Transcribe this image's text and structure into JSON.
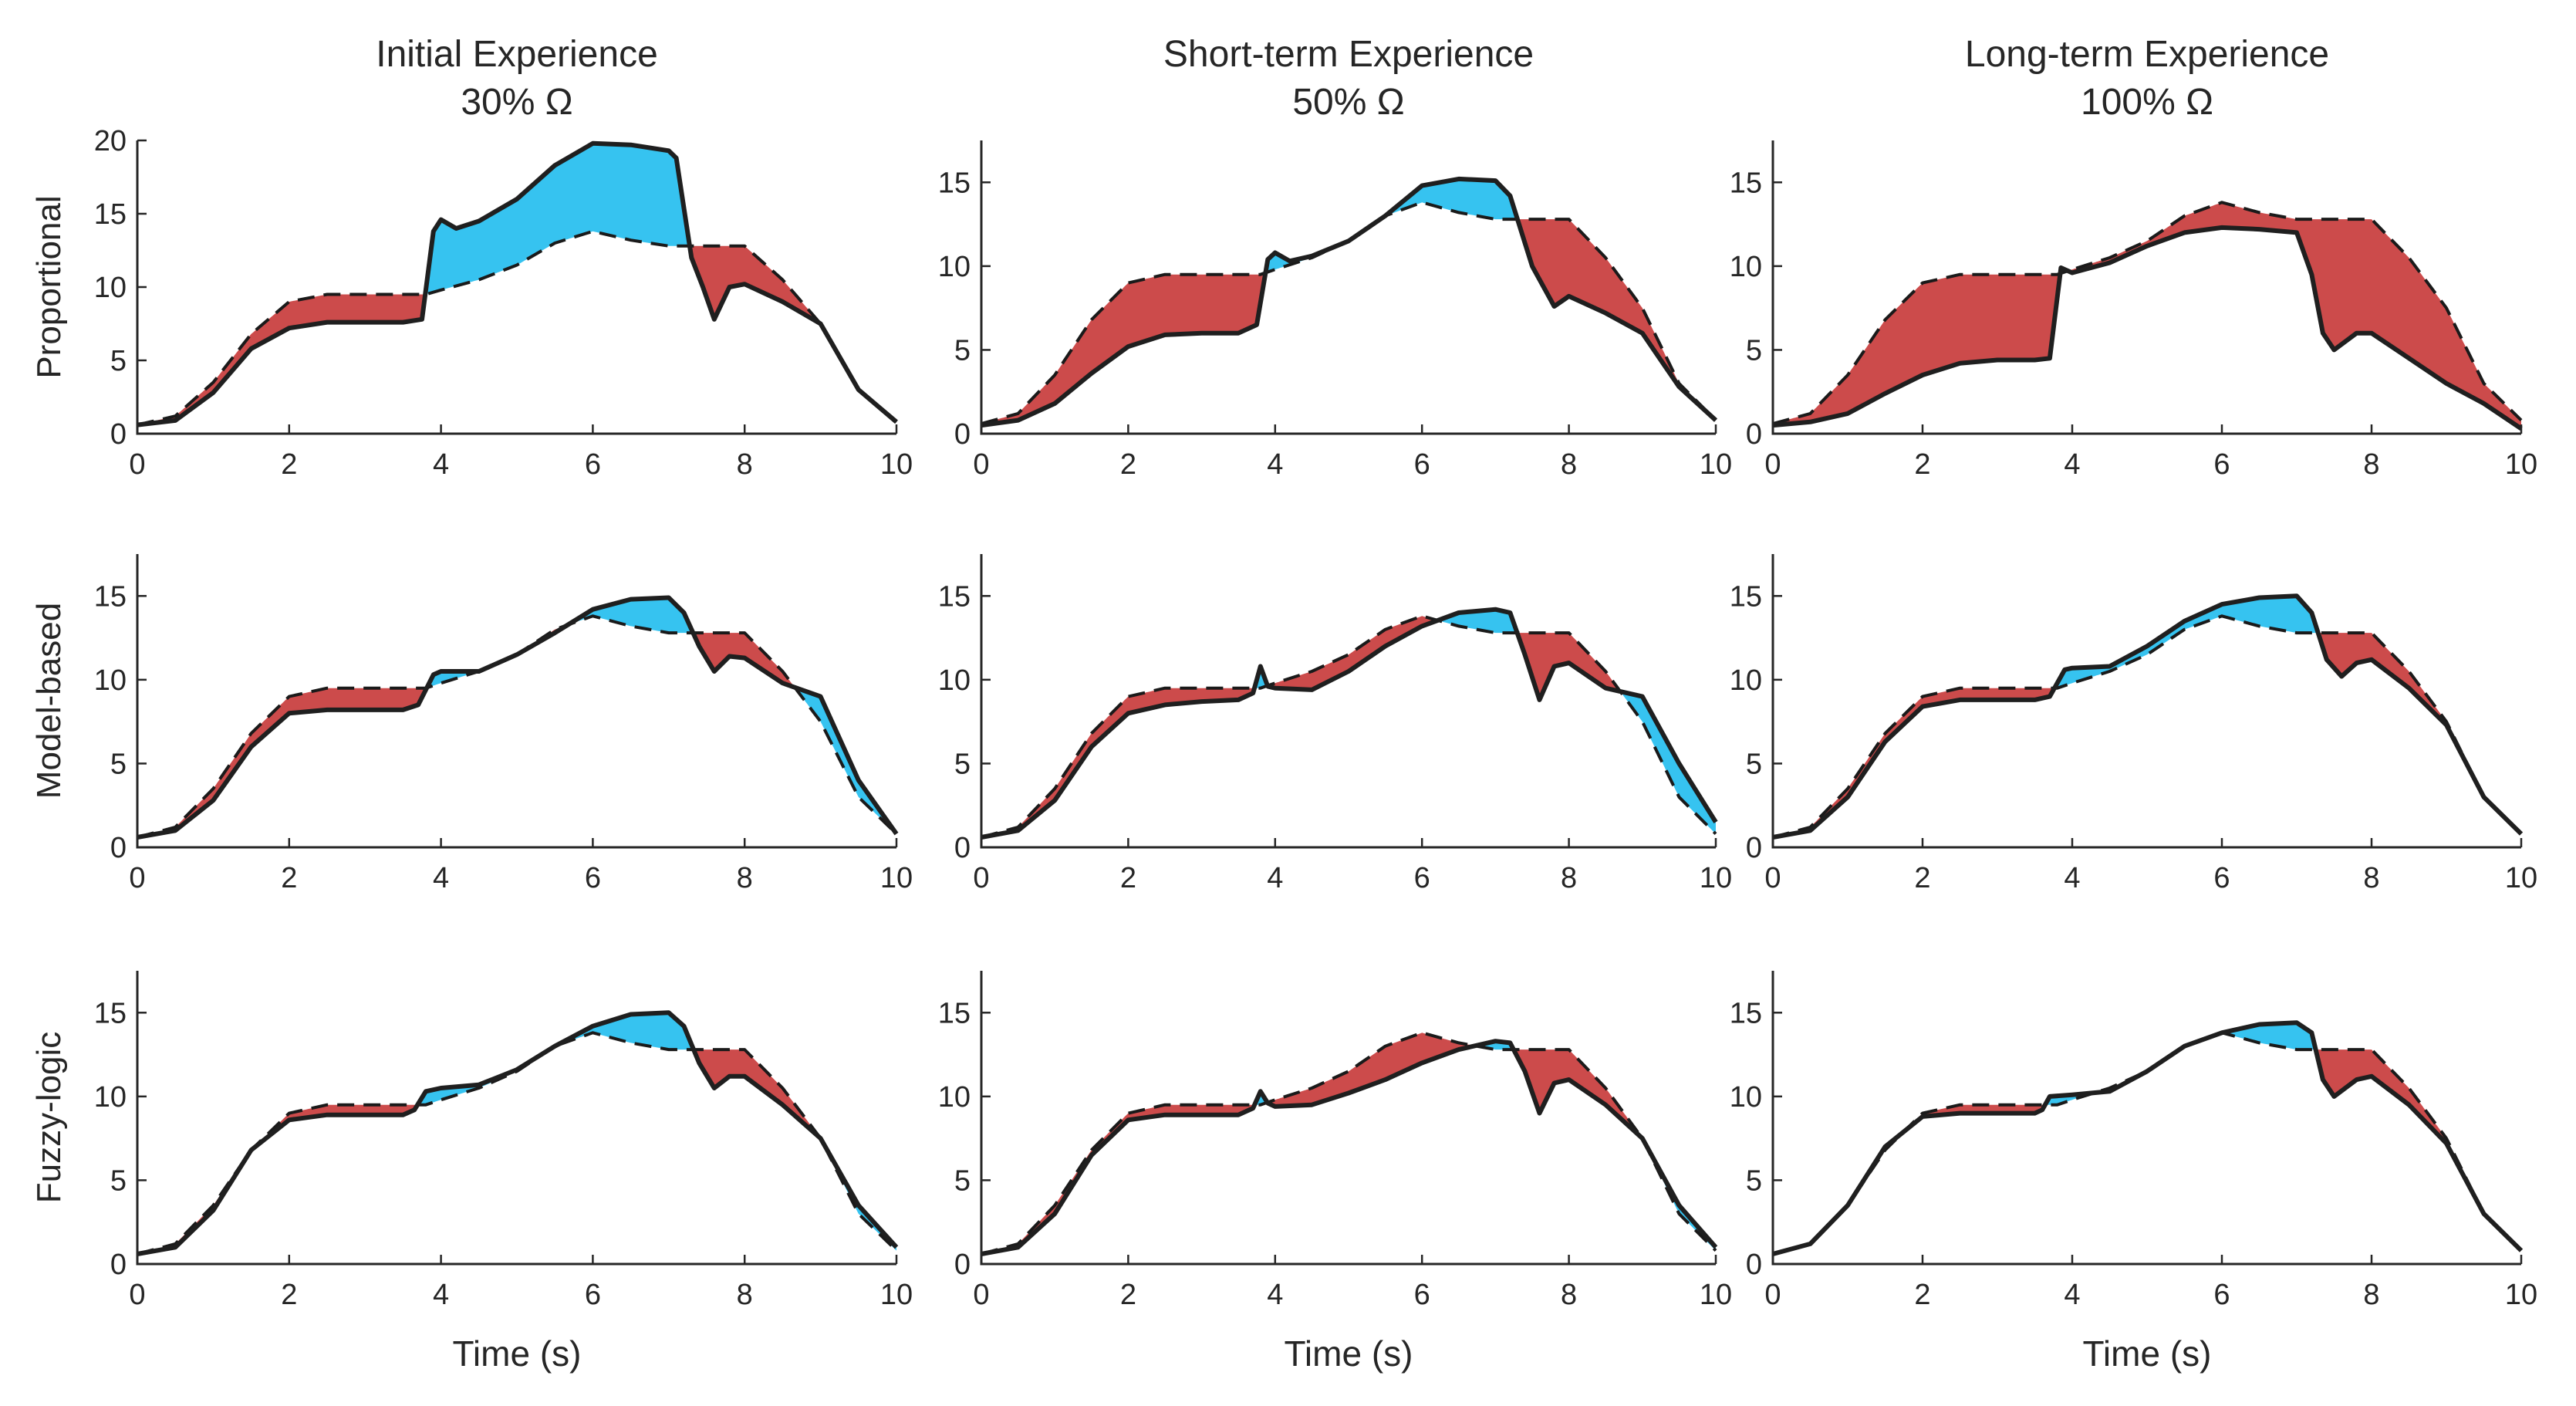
{
  "chart_data": {
    "type": "area",
    "layout": "3x3 grid of line/area subplots",
    "column_titles": [
      {
        "line1": "Initial Experience",
        "line2": "30% Ω"
      },
      {
        "line1": "Short-term Experience",
        "line2": "50% Ω"
      },
      {
        "line1": "Long-term Experience",
        "line2": "100% Ω"
      }
    ],
    "row_labels": [
      "Proportional",
      "Model-based",
      "Fuzzy-logic"
    ],
    "xlabel": "Time (s)",
    "xlim": [
      0,
      10
    ],
    "xticks": [
      0,
      2,
      4,
      6,
      8,
      10
    ],
    "fill_colors": {
      "actual_above_reference": "#36c3f0",
      "actual_below_reference": "#cc4b4b"
    },
    "series_names": [
      "reference (dashed)",
      "actual (solid)"
    ],
    "reference": {
      "x": [
        0,
        0.5,
        1,
        1.5,
        2,
        2.5,
        3,
        3.5,
        3.8,
        4,
        4.5,
        5,
        5.5,
        6,
        6.5,
        7,
        7.5,
        8,
        8.5,
        9,
        9.5,
        10
      ],
      "y": [
        0.6,
        1.2,
        3.5,
        6.8,
        9.0,
        9.5,
        9.5,
        9.5,
        9.5,
        9.8,
        10.5,
        11.5,
        13.0,
        13.8,
        13.2,
        12.8,
        12.8,
        12.8,
        10.5,
        7.5,
        3.0,
        0.8
      ]
    },
    "subplots": [
      {
        "row": 0,
        "col": 0,
        "ylim": [
          0,
          20
        ],
        "yticks": [
          0,
          5,
          10,
          15,
          20
        ],
        "actual": {
          "x": [
            0,
            0.5,
            1,
            1.5,
            2,
            2.5,
            3,
            3.5,
            3.75,
            3.9,
            4,
            4.2,
            4.5,
            5,
            5.5,
            6,
            6.5,
            7,
            7.1,
            7.3,
            7.45,
            7.6,
            7.8,
            8,
            8.5,
            9,
            9.5,
            10
          ],
          "y": [
            0.6,
            0.9,
            2.8,
            5.8,
            7.2,
            7.6,
            7.6,
            7.6,
            7.8,
            13.8,
            14.6,
            14.0,
            14.5,
            16.0,
            18.3,
            19.8,
            19.7,
            19.3,
            18.8,
            12.0,
            10.0,
            7.8,
            10.0,
            10.2,
            9.0,
            7.5,
            3.0,
            0.8
          ]
        }
      },
      {
        "row": 0,
        "col": 1,
        "ylim": [
          0,
          17.5
        ],
        "yticks": [
          0,
          5,
          10,
          15
        ],
        "actual": {
          "x": [
            0,
            0.5,
            1,
            1.5,
            2,
            2.5,
            3,
            3.5,
            3.75,
            3.9,
            4,
            4.2,
            4.5,
            5,
            5.5,
            6,
            6.5,
            7,
            7.2,
            7.5,
            7.8,
            8,
            8.5,
            9,
            9.5,
            10
          ],
          "y": [
            0.5,
            0.8,
            1.8,
            3.6,
            5.2,
            5.9,
            6.0,
            6.0,
            6.5,
            10.4,
            10.8,
            10.3,
            10.6,
            11.5,
            13.0,
            14.8,
            15.2,
            15.1,
            14.2,
            10.0,
            7.6,
            8.2,
            7.2,
            6.0,
            2.8,
            0.8
          ]
        }
      },
      {
        "row": 0,
        "col": 2,
        "ylim": [
          0,
          17.5
        ],
        "yticks": [
          0,
          5,
          10,
          15
        ],
        "actual": {
          "x": [
            0,
            0.5,
            1,
            1.5,
            2,
            2.5,
            3,
            3.5,
            3.7,
            3.85,
            4,
            4.5,
            5,
            5.5,
            6,
            6.5,
            7,
            7.2,
            7.35,
            7.5,
            7.8,
            8,
            8.5,
            9,
            9.5,
            10
          ],
          "y": [
            0.5,
            0.7,
            1.2,
            2.4,
            3.5,
            4.2,
            4.4,
            4.4,
            4.5,
            9.9,
            9.6,
            10.2,
            11.2,
            12.0,
            12.3,
            12.2,
            12.0,
            9.5,
            6.0,
            5.0,
            6.0,
            6.0,
            4.5,
            3.0,
            1.8,
            0.3
          ]
        }
      },
      {
        "row": 1,
        "col": 0,
        "ylim": [
          0,
          17.5
        ],
        "yticks": [
          0,
          5,
          10,
          15
        ],
        "actual": {
          "x": [
            0,
            0.5,
            1,
            1.5,
            2,
            2.5,
            3,
            3.5,
            3.7,
            3.9,
            4,
            4.5,
            5,
            5.5,
            6,
            6.5,
            7,
            7.2,
            7.4,
            7.6,
            7.8,
            8,
            8.5,
            9,
            9.5,
            10
          ],
          "y": [
            0.6,
            1.0,
            2.8,
            6.0,
            8.0,
            8.2,
            8.2,
            8.2,
            8.5,
            10.3,
            10.5,
            10.5,
            11.5,
            12.8,
            14.2,
            14.8,
            14.9,
            14.0,
            12.0,
            10.5,
            11.4,
            11.3,
            9.8,
            9.0,
            4.0,
            0.8
          ]
        }
      },
      {
        "row": 1,
        "col": 1,
        "ylim": [
          0,
          17.5
        ],
        "yticks": [
          0,
          5,
          10,
          15
        ],
        "actual": {
          "x": [
            0,
            0.5,
            1,
            1.5,
            2,
            2.5,
            3,
            3.5,
            3.7,
            3.8,
            3.9,
            4,
            4.5,
            5,
            5.5,
            6,
            6.5,
            7,
            7.2,
            7.4,
            7.6,
            7.8,
            8,
            8.5,
            9,
            9.5,
            10
          ],
          "y": [
            0.6,
            1.0,
            2.8,
            6.0,
            8.0,
            8.5,
            8.7,
            8.8,
            9.2,
            10.8,
            9.6,
            9.5,
            9.4,
            10.5,
            12.0,
            13.2,
            14.0,
            14.2,
            14.0,
            11.5,
            8.8,
            10.8,
            11.0,
            9.5,
            9.0,
            5.0,
            1.5
          ]
        }
      },
      {
        "row": 1,
        "col": 2,
        "ylim": [
          0,
          17.5
        ],
        "yticks": [
          0,
          5,
          10,
          15
        ],
        "actual": {
          "x": [
            0,
            0.5,
            1,
            1.5,
            2,
            2.5,
            3,
            3.5,
            3.7,
            3.9,
            4,
            4.5,
            5,
            5.5,
            6,
            6.5,
            7,
            7.2,
            7.4,
            7.6,
            7.8,
            8,
            8.5,
            9,
            9.5,
            10
          ],
          "y": [
            0.6,
            1.0,
            3.0,
            6.3,
            8.4,
            8.8,
            8.8,
            8.8,
            9.0,
            10.6,
            10.7,
            10.8,
            12.0,
            13.5,
            14.5,
            14.9,
            15.0,
            14.0,
            11.2,
            10.2,
            11.0,
            11.2,
            9.5,
            7.3,
            3.0,
            0.8
          ]
        }
      },
      {
        "row": 2,
        "col": 0,
        "ylim": [
          0,
          17.5
        ],
        "yticks": [
          0,
          5,
          10,
          15
        ],
        "actual": {
          "x": [
            0,
            0.5,
            1,
            1.5,
            2,
            2.5,
            3,
            3.5,
            3.65,
            3.8,
            4,
            4.5,
            5,
            5.5,
            6,
            6.5,
            7,
            7.2,
            7.4,
            7.6,
            7.8,
            8,
            8.5,
            9,
            9.5,
            10
          ],
          "y": [
            0.6,
            1.0,
            3.2,
            6.8,
            8.6,
            8.9,
            8.9,
            8.9,
            9.2,
            10.3,
            10.5,
            10.7,
            11.6,
            13.0,
            14.2,
            14.9,
            15.0,
            14.2,
            12.0,
            10.5,
            11.2,
            11.2,
            9.5,
            7.5,
            3.5,
            1.0
          ]
        }
      },
      {
        "row": 2,
        "col": 1,
        "ylim": [
          0,
          17.5
        ],
        "yticks": [
          0,
          5,
          10,
          15
        ],
        "actual": {
          "x": [
            0,
            0.5,
            1,
            1.5,
            2,
            2.5,
            3,
            3.5,
            3.7,
            3.8,
            3.9,
            4,
            4.5,
            5,
            5.5,
            6,
            6.5,
            7,
            7.2,
            7.4,
            7.6,
            7.8,
            8,
            8.5,
            9,
            9.5,
            10
          ],
          "y": [
            0.6,
            1.0,
            3.0,
            6.5,
            8.6,
            8.9,
            8.9,
            8.9,
            9.3,
            10.3,
            9.6,
            9.4,
            9.5,
            10.2,
            11.0,
            12.0,
            12.8,
            13.3,
            13.2,
            11.5,
            9.0,
            10.8,
            11.0,
            9.5,
            7.5,
            3.5,
            1.0
          ]
        }
      },
      {
        "row": 2,
        "col": 2,
        "ylim": [
          0,
          17.5
        ],
        "yticks": [
          0,
          5,
          10,
          15
        ],
        "actual": {
          "x": [
            0,
            0.5,
            1,
            1.5,
            2,
            2.5,
            3,
            3.5,
            3.6,
            3.7,
            4,
            4.5,
            5,
            5.5,
            6,
            6.5,
            7,
            7.2,
            7.35,
            7.5,
            7.8,
            8,
            8.5,
            9,
            9.5,
            10
          ],
          "y": [
            0.6,
            1.2,
            3.5,
            7.0,
            8.8,
            9.0,
            9.0,
            9.0,
            9.2,
            10.0,
            10.1,
            10.3,
            11.5,
            13.0,
            13.8,
            14.3,
            14.4,
            13.8,
            11.0,
            10.0,
            11.0,
            11.2,
            9.5,
            7.2,
            3.0,
            0.8
          ]
        }
      }
    ]
  }
}
